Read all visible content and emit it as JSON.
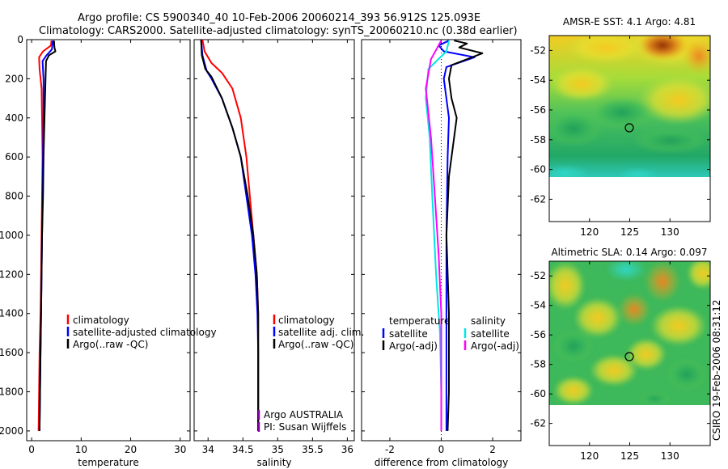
{
  "header": {
    "line1": "Argo profile: CS 5900340_40 10-Feb-2006 20060214_393 56.912S 125.093E",
    "line2": "Climatology: CARS2000. Satellite-adjusted climatology: synTS_20060210.nc (0.38d earlier)"
  },
  "side_stamp": "CSIRO 19-Feb-2006 08:31:12",
  "colors": {
    "climatology": "#ff0000",
    "satellite": "#0000ff",
    "argo": "#000000",
    "salinity_satellite": "#00e5e5",
    "salinity_argo": "#ff00ff"
  },
  "chart_data": [
    {
      "type": "line",
      "title": "",
      "xlabel": "temperature",
      "ylabel": "",
      "xlim": [
        -1,
        32
      ],
      "ylim": [
        2050,
        0
      ],
      "xticks": [
        "0",
        "10",
        "20",
        "30"
      ],
      "yticks": [
        "0",
        "200",
        "400",
        "600",
        "800",
        "1000",
        "1200",
        "1400",
        "1600",
        "1800",
        "2000"
      ],
      "legend": {
        "position": "middle-right",
        "entries": [
          "climatology",
          "satellite-adjusted climatology",
          "Argo(..raw -QC)"
        ]
      },
      "series": [
        {
          "name": "climatology",
          "color": "#ff0000",
          "points": [
            [
              4.0,
              5
            ],
            [
              3.9,
              30
            ],
            [
              2.3,
              60
            ],
            [
              1.5,
              90
            ],
            [
              1.6,
              150
            ],
            [
              2.0,
              250
            ],
            [
              2.1,
              400
            ],
            [
              2.2,
              600
            ],
            [
              2.1,
              800
            ],
            [
              2.0,
              1000
            ],
            [
              1.9,
              1200
            ],
            [
              1.8,
              1400
            ],
            [
              1.6,
              1600
            ],
            [
              1.5,
              1800
            ],
            [
              1.4,
              2000
            ]
          ]
        },
        {
          "name": "satellite-adjusted climatology",
          "color": "#0000ff",
          "points": [
            [
              4.3,
              5
            ],
            [
              4.1,
              50
            ],
            [
              3.0,
              80
            ],
            [
              2.2,
              110
            ],
            [
              2.4,
              200
            ],
            [
              2.4,
              400
            ],
            [
              2.3,
              600
            ],
            [
              2.2,
              800
            ],
            [
              2.1,
              1000
            ],
            [
              2.0,
              1200
            ],
            [
              1.9,
              1400
            ],
            [
              1.8,
              1600
            ],
            [
              1.7,
              1800
            ],
            [
              1.6,
              2000
            ]
          ]
        },
        {
          "name": "Argo(..raw -QC)",
          "color": "#000000",
          "points": [
            [
              4.5,
              5
            ],
            [
              4.6,
              40
            ],
            [
              4.8,
              60
            ],
            [
              3.5,
              80
            ],
            [
              2.9,
              110
            ],
            [
              2.8,
              200
            ],
            [
              2.6,
              400
            ],
            [
              2.4,
              600
            ],
            [
              2.3,
              800
            ],
            [
              2.1,
              1000
            ],
            [
              2.0,
              1200
            ],
            [
              1.9,
              1400
            ],
            [
              1.8,
              1600
            ],
            [
              1.7,
              1800
            ],
            [
              1.6,
              2000
            ]
          ]
        }
      ]
    },
    {
      "type": "line",
      "title": "",
      "xlabel": "salinity",
      "ylabel": "",
      "xlim": [
        33.8,
        36.1
      ],
      "ylim": [
        2050,
        0
      ],
      "xticks": [
        "34",
        "34.5",
        "35",
        "35.5",
        "36"
      ],
      "legend": {
        "position": "middle-right",
        "entries": [
          "climatology",
          "satellite adj. clim.",
          "Argo(..raw -QC)"
        ]
      },
      "annotations": [
        "Argo AUSTRALIA",
        "PI: Susan Wijffels"
      ],
      "series": [
        {
          "name": "climatology",
          "color": "#ff0000",
          "points": [
            [
              33.92,
              0
            ],
            [
              33.95,
              60
            ],
            [
              34.05,
              120
            ],
            [
              34.2,
              170
            ],
            [
              34.35,
              250
            ],
            [
              34.47,
              400
            ],
            [
              34.55,
              600
            ],
            [
              34.6,
              800
            ],
            [
              34.65,
              1000
            ],
            [
              34.7,
              1200
            ],
            [
              34.72,
              1400
            ],
            [
              34.72,
              1600
            ],
            [
              34.72,
              1800
            ],
            [
              34.72,
              2000
            ]
          ]
        },
        {
          "name": "satellite adj. clim.",
          "color": "#0000ff",
          "points": [
            [
              33.9,
              0
            ],
            [
              33.92,
              80
            ],
            [
              33.98,
              160
            ],
            [
              34.05,
              200
            ],
            [
              34.2,
              300
            ],
            [
              34.35,
              450
            ],
            [
              34.47,
              600
            ],
            [
              34.55,
              800
            ],
            [
              34.63,
              1000
            ],
            [
              34.68,
              1200
            ],
            [
              34.71,
              1400
            ],
            [
              34.72,
              1600
            ],
            [
              34.72,
              1800
            ],
            [
              34.72,
              2000
            ]
          ]
        },
        {
          "name": "Argo(..raw -QC)",
          "color": "#000000",
          "points": [
            [
              33.9,
              0
            ],
            [
              33.91,
              80
            ],
            [
              33.96,
              150
            ],
            [
              34.05,
              190
            ],
            [
              34.2,
              300
            ],
            [
              34.35,
              450
            ],
            [
              34.47,
              600
            ],
            [
              34.57,
              800
            ],
            [
              34.65,
              1000
            ],
            [
              34.7,
              1200
            ],
            [
              34.72,
              1400
            ],
            [
              34.72,
              1600
            ],
            [
              34.72,
              1800
            ],
            [
              34.72,
              2000
            ]
          ]
        }
      ]
    },
    {
      "type": "line",
      "title": "",
      "xlabel": "difference from climatology",
      "ylabel": "",
      "xlim": [
        -3.1,
        3.1
      ],
      "ylim": [
        2050,
        0
      ],
      "xticks": [
        "-2",
        "0",
        "2"
      ],
      "legend": {
        "position": "middle-right",
        "temperature_header": "temperature",
        "salinity_header": "salinity",
        "entries": [
          "satellite",
          "Argo(-adj)",
          "satellite",
          "Argo(-adj)"
        ]
      },
      "zero_line": true,
      "series": [
        {
          "name": "temperature satellite",
          "color": "#0000ff",
          "points": [
            [
              0.3,
              5
            ],
            [
              -0.1,
              30
            ],
            [
              0.1,
              60
            ],
            [
              1.3,
              90
            ],
            [
              0.2,
              140
            ],
            [
              0.1,
              200
            ],
            [
              0.3,
              400
            ],
            [
              0.25,
              600
            ],
            [
              0.2,
              1000
            ],
            [
              0.2,
              1400
            ],
            [
              0.2,
              1800
            ],
            [
              0.2,
              2000
            ]
          ]
        },
        {
          "name": "temperature Argo(-adj)",
          "color": "#000000",
          "points": [
            [
              0.5,
              5
            ],
            [
              1.0,
              20
            ],
            [
              0.7,
              40
            ],
            [
              1.6,
              70
            ],
            [
              1.2,
              90
            ],
            [
              0.4,
              130
            ],
            [
              0.3,
              200
            ],
            [
              0.4,
              300
            ],
            [
              0.6,
              400
            ],
            [
              0.5,
              500
            ],
            [
              0.3,
              700
            ],
            [
              0.2,
              1000
            ],
            [
              0.3,
              1400
            ],
            [
              0.3,
              1800
            ],
            [
              0.25,
              2000
            ]
          ]
        },
        {
          "name": "salinity satellite",
          "color": "#00e5e5",
          "points": [
            [
              0.3,
              5
            ],
            [
              0.2,
              60
            ],
            [
              -0.5,
              150
            ],
            [
              -0.6,
              300
            ],
            [
              -0.45,
              500
            ],
            [
              -0.35,
              800
            ],
            [
              -0.2,
              1200
            ],
            [
              -0.05,
              1500
            ],
            [
              0.0,
              1800
            ],
            [
              0.0,
              2000
            ]
          ]
        },
        {
          "name": "salinity Argo(-adj)",
          "color": "#ff00ff",
          "points": [
            [
              0.0,
              5
            ],
            [
              -0.4,
              100
            ],
            [
              -0.6,
              250
            ],
            [
              -0.4,
              500
            ],
            [
              -0.25,
              800
            ],
            [
              -0.1,
              1100
            ],
            [
              0.0,
              1400
            ],
            [
              0.0,
              1800
            ],
            [
              0.0,
              2000
            ]
          ]
        }
      ]
    },
    {
      "type": "heatmap",
      "title": "AMSR-E SST: 4.1  Argo: 4.81",
      "xlim": [
        115,
        135
      ],
      "ylim": [
        -63.5,
        -51
      ],
      "xticks": [
        "120",
        "125",
        "130"
      ],
      "yticks": [
        "-52",
        "-54",
        "-56",
        "-58",
        "-60",
        "-62"
      ],
      "marker": [
        125.1,
        -56.9
      ]
    },
    {
      "type": "heatmap",
      "title": "Altimetric SLA: 0.14  Argo: 0.097",
      "xlim": [
        115,
        135
      ],
      "ylim": [
        -63.5,
        -51
      ],
      "xticks": [
        "120",
        "125",
        "130"
      ],
      "yticks": [
        "-52",
        "-54",
        "-56",
        "-58",
        "-60",
        "-62"
      ],
      "marker": [
        125.1,
        -56.9
      ]
    }
  ]
}
